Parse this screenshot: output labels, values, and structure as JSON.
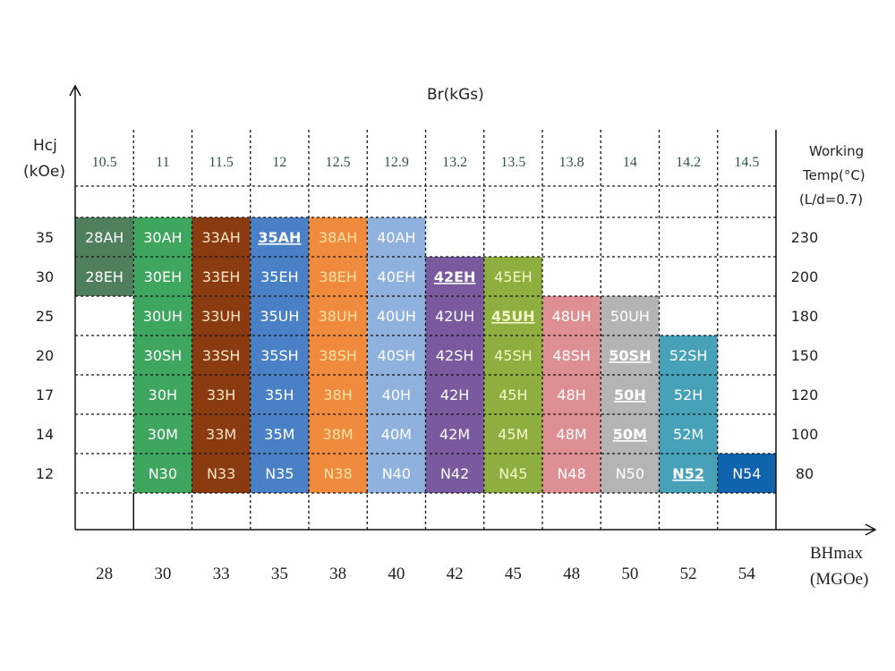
{
  "chart_data": {
    "type": "table",
    "top_axis_label": "Br(kGs)",
    "left_axis_label": [
      "Hcj",
      "(kOe)"
    ],
    "right_axis_label": [
      "Working",
      "Temp(°C)",
      "(L/d=0.7)"
    ],
    "bottom_axis_label": [
      "BHmax",
      "(MGOe)"
    ],
    "rows": [
      {
        "suffix": "AH",
        "hcj": "35",
        "temp": "230"
      },
      {
        "suffix": "EH",
        "hcj": "30",
        "temp": "200"
      },
      {
        "suffix": "UH",
        "hcj": "25",
        "temp": "180"
      },
      {
        "suffix": "SH",
        "hcj": "20",
        "temp": "150"
      },
      {
        "suffix": "H",
        "hcj": "17",
        "temp": "120"
      },
      {
        "suffix": "M",
        "hcj": "14",
        "temp": "100"
      },
      {
        "suffix": "N",
        "hcj": "12",
        "temp": "80"
      }
    ],
    "columns": [
      {
        "br": "10.5",
        "bhmax": "28",
        "color": "#4f7f5c",
        "text_color": "#ffffff",
        "grades": [
          "28AH",
          "28EH",
          null,
          null,
          null,
          null,
          null
        ]
      },
      {
        "br": "11",
        "bhmax": "30",
        "color": "#3fa660",
        "text_color": "#ffffff",
        "grades": [
          "30AH",
          "30EH",
          "30UH",
          "30SH",
          "30H",
          "30M",
          "N30"
        ]
      },
      {
        "br": "11.5",
        "bhmax": "33",
        "color": "#8a3b10",
        "text_color": "#fbe6c8",
        "grades": [
          "33AH",
          "33EH",
          "33UH",
          "33SH",
          "33H",
          "33M",
          "N33"
        ]
      },
      {
        "br": "12",
        "bhmax": "35",
        "color": "#4a80c6",
        "text_color": "#ffffff",
        "grades": [
          "35AH",
          "35EH",
          "35UH",
          "35SH",
          "35H",
          "35M",
          "N35"
        ]
      },
      {
        "br": "12.5",
        "bhmax": "38",
        "color": "#f08a3c",
        "text_color": "#fbe3a8",
        "grades": [
          "38AH",
          "38EH",
          "38UH",
          "38SH",
          "38H",
          "38M",
          "N38"
        ]
      },
      {
        "br": "12.9",
        "bhmax": "40",
        "color": "#8fb1de",
        "text_color": "#ffffff",
        "grades": [
          "40AH",
          "40EH",
          "40UH",
          "40SH",
          "40H",
          "40M",
          "N40"
        ]
      },
      {
        "br": "13.2",
        "bhmax": "42",
        "color": "#7a5a9f",
        "text_color": "#ffffff",
        "grades": [
          null,
          "42EH",
          "42UH",
          "42SH",
          "42H",
          "42M",
          "N42"
        ]
      },
      {
        "br": "13.5",
        "bhmax": "45",
        "color": "#8fae40",
        "text_color": "#f3f8c8",
        "grades": [
          null,
          "45EH",
          "45UH",
          "45SH",
          "45H",
          "45M",
          "N45"
        ]
      },
      {
        "br": "13.8",
        "bhmax": "48",
        "color": "#de8f93",
        "text_color": "#ffffff",
        "grades": [
          null,
          null,
          "48UH",
          "48SH",
          "48H",
          "48M",
          "N48"
        ]
      },
      {
        "br": "14",
        "bhmax": "50",
        "color": "#b4b4b4",
        "text_color": "#ffffff",
        "grades": [
          null,
          null,
          "50UH",
          "50SH",
          "50H",
          "50M",
          "N50"
        ]
      },
      {
        "br": "14.2",
        "bhmax": "52",
        "color": "#46a1b9",
        "text_color": "#ffffff",
        "grades": [
          null,
          null,
          null,
          "52SH",
          "52H",
          "52M",
          "N52"
        ]
      },
      {
        "br": "14.5",
        "bhmax": "54",
        "color": "#1064ae",
        "text_color": "#ffffff",
        "grades": [
          null,
          null,
          null,
          null,
          null,
          null,
          "N54"
        ]
      }
    ],
    "underlined_grades": [
      "35AH",
      "42EH",
      "45UH",
      "50SH",
      "50H",
      "50M",
      "N52"
    ],
    "grid": true
  }
}
